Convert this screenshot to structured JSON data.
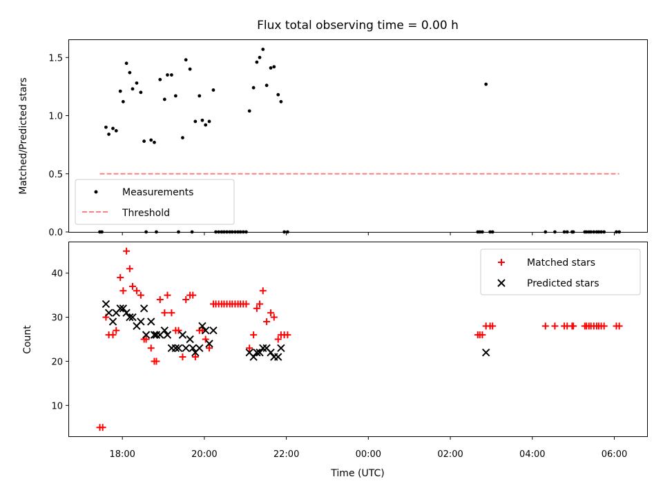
{
  "chart_data": [
    {
      "type": "scatter",
      "title": "Flux total observing time = 0.00 h",
      "xlabel": "",
      "ylabel": "Matched/Predicted stars",
      "xlim": [
        16.7,
        30.8
      ],
      "ylim": [
        0.0,
        1.65
      ],
      "yticks": [
        0.0,
        0.5,
        1.0,
        1.5
      ],
      "ytick_labels": [
        "0.0",
        "0.5",
        "1.0",
        "1.5"
      ],
      "legend_placement": "lower-left",
      "grid": false,
      "colors": {
        "measurements": "#000000",
        "threshold": "#ff7f7f"
      },
      "series": [
        {
          "name": "Measurements",
          "marker": "dot",
          "points": [
            [
              17.45,
              0.0
            ],
            [
              17.5,
              0.0
            ],
            [
              17.6,
              0.9
            ],
            [
              17.67,
              0.84
            ],
            [
              17.77,
              0.89
            ],
            [
              17.85,
              0.87
            ],
            [
              17.95,
              1.21
            ],
            [
              18.02,
              1.12
            ],
            [
              18.1,
              1.45
            ],
            [
              18.18,
              1.37
            ],
            [
              18.25,
              1.23
            ],
            [
              18.35,
              1.28
            ],
            [
              18.45,
              1.2
            ],
            [
              18.53,
              0.78
            ],
            [
              18.58,
              0.0
            ],
            [
              18.7,
              0.79
            ],
            [
              18.78,
              0.77
            ],
            [
              18.83,
              0.0
            ],
            [
              18.92,
              1.31
            ],
            [
              19.03,
              1.14
            ],
            [
              19.1,
              1.35
            ],
            [
              19.2,
              1.35
            ],
            [
              19.3,
              1.17
            ],
            [
              19.37,
              0.0
            ],
            [
              19.47,
              0.81
            ],
            [
              19.55,
              1.48
            ],
            [
              19.65,
              1.4
            ],
            [
              19.7,
              0.0
            ],
            [
              19.78,
              0.95
            ],
            [
              19.88,
              1.17
            ],
            [
              19.95,
              0.96
            ],
            [
              20.03,
              0.92
            ],
            [
              20.12,
              0.95
            ],
            [
              20.22,
              1.22
            ],
            [
              20.28,
              0.0
            ],
            [
              20.35,
              0.0
            ],
            [
              20.42,
              0.0
            ],
            [
              20.48,
              0.0
            ],
            [
              20.55,
              0.0
            ],
            [
              20.62,
              0.0
            ],
            [
              20.68,
              0.0
            ],
            [
              20.75,
              0.0
            ],
            [
              20.82,
              0.0
            ],
            [
              20.88,
              0.0
            ],
            [
              20.95,
              0.0
            ],
            [
              21.02,
              0.0
            ],
            [
              21.1,
              1.04
            ],
            [
              21.2,
              1.24
            ],
            [
              21.28,
              1.46
            ],
            [
              21.35,
              1.5
            ],
            [
              21.43,
              1.57
            ],
            [
              21.52,
              1.26
            ],
            [
              21.62,
              1.41
            ],
            [
              21.7,
              1.42
            ],
            [
              21.8,
              1.18
            ],
            [
              21.87,
              1.12
            ],
            [
              21.95,
              0.0
            ],
            [
              22.03,
              0.0
            ],
            [
              26.67,
              0.0
            ],
            [
              26.72,
              0.0
            ],
            [
              26.78,
              0.0
            ],
            [
              26.87,
              1.27
            ],
            [
              26.97,
              0.0
            ],
            [
              27.03,
              0.0
            ],
            [
              28.32,
              0.0
            ],
            [
              28.55,
              0.0
            ],
            [
              28.78,
              0.0
            ],
            [
              28.85,
              0.0
            ],
            [
              28.97,
              0.0
            ],
            [
              29.0,
              0.0
            ],
            [
              29.28,
              0.0
            ],
            [
              29.32,
              0.0
            ],
            [
              29.38,
              0.0
            ],
            [
              29.43,
              0.0
            ],
            [
              29.5,
              0.0
            ],
            [
              29.57,
              0.0
            ],
            [
              29.62,
              0.0
            ],
            [
              29.68,
              0.0
            ],
            [
              29.75,
              0.0
            ],
            [
              30.05,
              0.0
            ],
            [
              30.12,
              0.0
            ]
          ]
        },
        {
          "name": "Threshold",
          "style": "dashed",
          "points": [
            [
              17.45,
              0.5
            ],
            [
              30.12,
              0.5
            ]
          ]
        }
      ]
    },
    {
      "type": "scatter",
      "title": "",
      "xlabel": "Time (UTC)",
      "ylabel": "Count",
      "xlim": [
        16.7,
        30.8
      ],
      "ylim": [
        3.0,
        47.0
      ],
      "yticks": [
        10,
        20,
        30,
        40
      ],
      "ytick_labels": [
        "10",
        "20",
        "30",
        "40"
      ],
      "xticks": [
        18,
        20,
        22,
        24,
        26,
        28,
        30
      ],
      "xtick_labels": [
        "18:00",
        "20:00",
        "22:00",
        "00:00",
        "02:00",
        "04:00",
        "06:00"
      ],
      "legend_placement": "upper-right",
      "grid": false,
      "colors": {
        "matched": "#ff0000",
        "predicted": "#000000"
      },
      "series": [
        {
          "name": "Matched stars",
          "marker": "plus",
          "points": [
            [
              17.45,
              5
            ],
            [
              17.52,
              5
            ],
            [
              17.6,
              30
            ],
            [
              17.67,
              26
            ],
            [
              17.77,
              26
            ],
            [
              17.85,
              27
            ],
            [
              17.95,
              39
            ],
            [
              18.02,
              36
            ],
            [
              18.1,
              45
            ],
            [
              18.18,
              41
            ],
            [
              18.25,
              37
            ],
            [
              18.35,
              36
            ],
            [
              18.45,
              35
            ],
            [
              18.53,
              25
            ],
            [
              18.58,
              25
            ],
            [
              18.7,
              23
            ],
            [
              18.78,
              20
            ],
            [
              18.83,
              20
            ],
            [
              18.92,
              34
            ],
            [
              19.03,
              31
            ],
            [
              19.1,
              35
            ],
            [
              19.2,
              31
            ],
            [
              19.3,
              27
            ],
            [
              19.37,
              27
            ],
            [
              19.47,
              21
            ],
            [
              19.55,
              34
            ],
            [
              19.65,
              35
            ],
            [
              19.72,
              35
            ],
            [
              19.78,
              21
            ],
            [
              19.88,
              27
            ],
            [
              19.95,
              27
            ],
            [
              20.03,
              25
            ],
            [
              20.12,
              23
            ],
            [
              20.22,
              33
            ],
            [
              20.28,
              33
            ],
            [
              20.35,
              33
            ],
            [
              20.42,
              33
            ],
            [
              20.48,
              33
            ],
            [
              20.55,
              33
            ],
            [
              20.62,
              33
            ],
            [
              20.68,
              33
            ],
            [
              20.75,
              33
            ],
            [
              20.82,
              33
            ],
            [
              20.88,
              33
            ],
            [
              20.95,
              33
            ],
            [
              21.02,
              33
            ],
            [
              21.1,
              23
            ],
            [
              21.2,
              26
            ],
            [
              21.28,
              32
            ],
            [
              21.35,
              33
            ],
            [
              21.43,
              36
            ],
            [
              21.52,
              29
            ],
            [
              21.62,
              31
            ],
            [
              21.7,
              30
            ],
            [
              21.8,
              25
            ],
            [
              21.87,
              26
            ],
            [
              21.95,
              26
            ],
            [
              22.03,
              26
            ],
            [
              26.67,
              26
            ],
            [
              26.72,
              26
            ],
            [
              26.78,
              26
            ],
            [
              26.87,
              28
            ],
            [
              26.97,
              28
            ],
            [
              27.03,
              28
            ],
            [
              28.32,
              28
            ],
            [
              28.55,
              28
            ],
            [
              28.78,
              28
            ],
            [
              28.85,
              28
            ],
            [
              28.97,
              28
            ],
            [
              29.0,
              28
            ],
            [
              29.28,
              28
            ],
            [
              29.32,
              28
            ],
            [
              29.38,
              28
            ],
            [
              29.43,
              28
            ],
            [
              29.5,
              28
            ],
            [
              29.57,
              28
            ],
            [
              29.62,
              28
            ],
            [
              29.68,
              28
            ],
            [
              29.75,
              28
            ],
            [
              30.05,
              28
            ],
            [
              30.12,
              28
            ]
          ]
        },
        {
          "name": "Predicted stars",
          "marker": "x",
          "points": [
            [
              17.6,
              33
            ],
            [
              17.67,
              31
            ],
            [
              17.77,
              29
            ],
            [
              17.85,
              31
            ],
            [
              17.95,
              32
            ],
            [
              18.02,
              32
            ],
            [
              18.1,
              31
            ],
            [
              18.18,
              30
            ],
            [
              18.25,
              30
            ],
            [
              18.35,
              28
            ],
            [
              18.45,
              29
            ],
            [
              18.53,
              32
            ],
            [
              18.58,
              26
            ],
            [
              18.7,
              29
            ],
            [
              18.78,
              26
            ],
            [
              18.83,
              26
            ],
            [
              18.92,
              26
            ],
            [
              19.03,
              27
            ],
            [
              19.1,
              26
            ],
            [
              19.2,
              23
            ],
            [
              19.3,
              23
            ],
            [
              19.37,
              23
            ],
            [
              19.47,
              26
            ],
            [
              19.55,
              23
            ],
            [
              19.65,
              25
            ],
            [
              19.72,
              23
            ],
            [
              19.78,
              22
            ],
            [
              19.88,
              23
            ],
            [
              19.95,
              28
            ],
            [
              20.03,
              27
            ],
            [
              20.12,
              24
            ],
            [
              20.22,
              27
            ],
            [
              21.1,
              22
            ],
            [
              21.2,
              21
            ],
            [
              21.28,
              22
            ],
            [
              21.35,
              22
            ],
            [
              21.43,
              23
            ],
            [
              21.52,
              23
            ],
            [
              21.62,
              22
            ],
            [
              21.7,
              21
            ],
            [
              21.8,
              21
            ],
            [
              21.87,
              23
            ],
            [
              26.87,
              22
            ]
          ]
        }
      ]
    }
  ]
}
